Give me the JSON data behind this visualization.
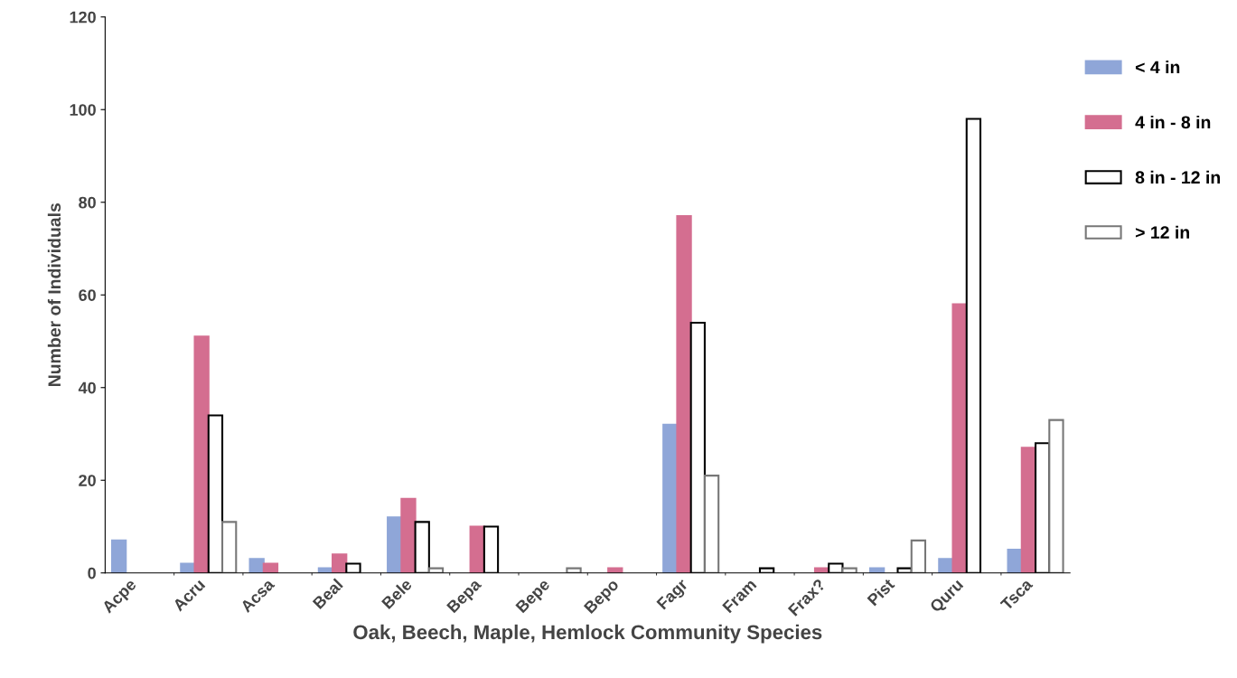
{
  "chart_data": {
    "type": "bar",
    "xlabel": "Oak, Beech, Maple, Hemlock Community Species",
    "ylabel": "Number of Individuals",
    "categories": [
      "Acpe",
      "Acru",
      "Acsa",
      "Beal",
      "Bele",
      "Bepa",
      "Bepe",
      "Bepo",
      "Fagr",
      "Fram",
      "Frax?",
      "Pist",
      "Quru",
      "Tsca"
    ],
    "series": [
      {
        "name": "< 4 in",
        "color": "#8fa6d8",
        "values": [
          7,
          2,
          3,
          1,
          12,
          0,
          0,
          0,
          32,
          0,
          0,
          1,
          3,
          5
        ]
      },
      {
        "name": "4 in - 8 in",
        "color": "#d46e90",
        "values": [
          0,
          51,
          2,
          4,
          16,
          10,
          0,
          1,
          77,
          0,
          1,
          0,
          58,
          27
        ]
      },
      {
        "name": "8 in - 12 in",
        "color": "#ffffff",
        "values": [
          0,
          34,
          0,
          2,
          11,
          10,
          0,
          0,
          54,
          1,
          2,
          1,
          98,
          28
        ]
      },
      {
        "name": "> 12 in",
        "color": "#ffffff",
        "values": [
          0,
          11,
          0,
          0,
          1,
          0,
          1,
          0,
          21,
          0,
          1,
          7,
          0,
          33
        ]
      }
    ],
    "ylim": [
      0,
      120
    ],
    "yticks": [
      0,
      20,
      40,
      60,
      80,
      100,
      120
    ],
    "grid": false,
    "legend": "right"
  }
}
